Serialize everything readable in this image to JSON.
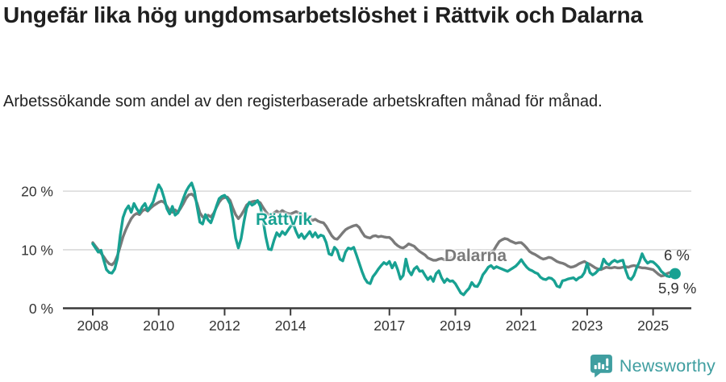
{
  "header": {
    "title": "Ungefär lika hög ungdomsarbetslöshet i Rättvik och Dalarna",
    "subtitle": "Arbetssökande som andel av den registerbaserade arbetskraften månad för månad."
  },
  "chart_data": {
    "type": "line",
    "unit": "%",
    "frequency": "monthly",
    "x_start": "2008-01",
    "x_end": "2025-09",
    "ylim": [
      0,
      22
    ],
    "grid": "horizontal",
    "legend_position": "inline-labels",
    "yticks": [
      {
        "value": 0,
        "label": "0 %"
      },
      {
        "value": 10,
        "label": "10 %"
      },
      {
        "value": 20,
        "label": "20 %"
      }
    ],
    "xticks": [
      {
        "year": 2008,
        "label": "2008"
      },
      {
        "year": 2010,
        "label": "2010"
      },
      {
        "year": 2012,
        "label": "2012"
      },
      {
        "year": 2014,
        "label": "2014"
      },
      {
        "year": 2017,
        "label": "2017"
      },
      {
        "year": 2019,
        "label": "2019"
      },
      {
        "year": 2021,
        "label": "2021"
      },
      {
        "year": 2023,
        "label": "2023"
      },
      {
        "year": 2025,
        "label": "2025"
      }
    ],
    "series": [
      {
        "id": "rattvik",
        "name": "Rättvik",
        "label_text": "Rättvik",
        "color": "#18a192",
        "end_value": 5.9,
        "end_label": "5,9 %",
        "values": [
          11.0,
          10.3,
          9.6,
          9.9,
          8.2,
          6.6,
          6.1,
          6.0,
          6.7,
          8.5,
          12.5,
          15.5,
          16.8,
          17.5,
          16.4,
          17.9,
          17.0,
          16.3,
          17.3,
          17.9,
          16.7,
          17.4,
          18.2,
          19.8,
          21.1,
          20.3,
          18.8,
          17.0,
          16.1,
          17.4,
          15.9,
          16.3,
          17.5,
          18.8,
          20.0,
          20.8,
          21.4,
          20.0,
          17.3,
          14.7,
          14.4,
          16.0,
          15.1,
          14.6,
          15.9,
          17.4,
          18.7,
          19.1,
          19.3,
          18.7,
          17.8,
          15.2,
          12.0,
          10.3,
          11.9,
          14.7,
          17.1,
          18.1,
          17.6,
          17.9,
          18.4,
          17.4,
          15.0,
          12.2,
          10.1,
          10.0,
          11.6,
          12.9,
          12.3,
          13.1,
          12.6,
          13.3,
          14.0,
          14.4,
          13.1,
          12.1,
          12.7,
          11.9,
          12.5,
          13.1,
          12.2,
          12.9,
          12.1,
          12.5,
          12.3,
          11.2,
          9.3,
          9.1,
          10.4,
          9.9,
          8.4,
          8.1,
          9.6,
          10.3,
          10.1,
          10.4,
          9.1,
          7.7,
          6.3,
          5.1,
          4.4,
          4.2,
          5.4,
          6.0,
          6.7,
          7.3,
          7.8,
          7.5,
          8.0,
          6.9,
          7.8,
          6.6,
          5.0,
          5.6,
          8.4,
          6.4,
          5.7,
          6.7,
          7.1,
          6.3,
          6.4,
          5.6,
          4.9,
          5.4,
          4.6,
          5.9,
          6.4,
          5.2,
          4.4,
          5.0,
          4.6,
          4.7,
          4.2,
          3.4,
          2.6,
          2.3,
          2.9,
          3.4,
          4.4,
          3.8,
          3.7,
          4.5,
          5.7,
          6.3,
          7.0,
          7.3,
          6.8,
          7.1,
          6.9,
          6.7,
          6.5,
          6.3,
          6.6,
          6.9,
          7.2,
          7.7,
          8.3,
          7.6,
          7.0,
          6.6,
          6.4,
          6.1,
          5.9,
          5.3,
          5.0,
          4.9,
          5.2,
          5.1,
          4.7,
          3.8,
          3.6,
          4.7,
          4.8,
          5.0,
          5.1,
          5.2,
          4.8,
          5.2,
          5.4,
          6.1,
          7.7,
          6.1,
          5.7,
          6.0,
          6.5,
          6.8,
          8.4,
          7.7,
          7.4,
          7.9,
          8.2,
          7.9,
          8.1,
          8.2,
          6.5,
          5.2,
          4.9,
          5.6,
          6.9,
          7.9,
          9.3,
          8.3,
          7.7,
          8.0,
          7.9,
          7.5,
          7.0,
          6.3,
          5.9,
          5.5,
          5.4,
          5.7,
          5.9
        ]
      },
      {
        "id": "dalarna",
        "name": "Dalarna",
        "label_text": "Dalarna",
        "color": "#7a7a7a",
        "end_value": 6.0,
        "end_label": "6 %",
        "values": [
          11.2,
          10.6,
          10.0,
          9.4,
          8.8,
          8.1,
          7.6,
          7.4,
          7.9,
          9.0,
          10.6,
          12.2,
          13.4,
          14.4,
          15.3,
          15.9,
          16.2,
          16.0,
          16.6,
          16.9,
          16.6,
          17.1,
          17.5,
          17.8,
          18.1,
          18.3,
          18.1,
          17.4,
          16.7,
          16.4,
          16.8,
          16.4,
          17.1,
          17.9,
          18.8,
          19.4,
          19.5,
          19.1,
          17.9,
          16.3,
          15.6,
          15.5,
          15.9,
          15.6,
          16.2,
          17.2,
          18.1,
          18.7,
          18.9,
          19.0,
          18.4,
          17.1,
          16.0,
          15.3,
          15.9,
          16.7,
          17.6,
          18.0,
          18.2,
          18.3,
          18.3,
          18.0,
          17.2,
          16.5,
          16.0,
          15.8,
          16.3,
          16.6,
          16.3,
          16.7,
          16.4,
          16.2,
          16.1,
          16.3,
          16.5,
          16.3,
          15.9,
          15.5,
          15.8,
          15.4,
          15.0,
          15.2,
          14.9,
          14.7,
          14.6,
          14.0,
          13.2,
          12.4,
          11.9,
          11.8,
          12.3,
          12.9,
          13.4,
          13.7,
          13.9,
          14.1,
          14.2,
          13.8,
          13.0,
          12.3,
          12.1,
          12.0,
          12.3,
          12.4,
          12.2,
          12.3,
          12.2,
          12.1,
          12.1,
          11.7,
          11.1,
          10.7,
          10.4,
          10.3,
          10.6,
          11.0,
          10.8,
          10.6,
          10.1,
          9.7,
          9.4,
          9.1,
          8.6,
          8.4,
          8.2,
          8.2,
          8.4,
          8.5,
          8.3,
          8.4,
          8.5,
          8.7,
          8.6,
          8.5,
          8.4,
          8.5,
          8.6,
          8.7,
          8.9,
          8.8,
          8.9,
          9.0,
          9.1,
          9.3,
          9.4,
          9.6,
          9.9,
          10.7,
          11.4,
          11.7,
          11.9,
          11.8,
          11.5,
          11.3,
          11.1,
          11.2,
          11.2,
          10.8,
          10.3,
          9.7,
          9.4,
          9.2,
          8.9,
          8.6,
          8.4,
          8.5,
          8.7,
          8.6,
          8.3,
          8.0,
          7.8,
          7.7,
          7.5,
          7.2,
          7.0,
          7.1,
          7.3,
          7.6,
          7.8,
          8.0,
          7.7,
          7.5,
          7.2,
          6.9,
          6.7,
          6.6,
          6.8,
          7.0,
          6.9,
          6.9,
          7.0,
          6.9,
          6.9,
          7.0,
          7.1,
          7.0,
          7.2,
          7.3,
          7.2,
          7.0,
          6.9,
          6.9,
          6.8,
          6.7,
          6.6,
          6.2,
          5.8,
          5.5,
          5.6,
          5.9,
          6.1,
          6.1,
          6.0
        ]
      }
    ]
  },
  "footer": {
    "brand": "Newsworthy"
  },
  "colors": {
    "accent_teal": "#18a192",
    "line_gray": "#7a7a7a",
    "axis": "#333333",
    "axis_line": "#3a3a3a",
    "grid": "#dcdcdc",
    "title": "#1f1f1f",
    "logo_teal": "#3f9ea0"
  }
}
